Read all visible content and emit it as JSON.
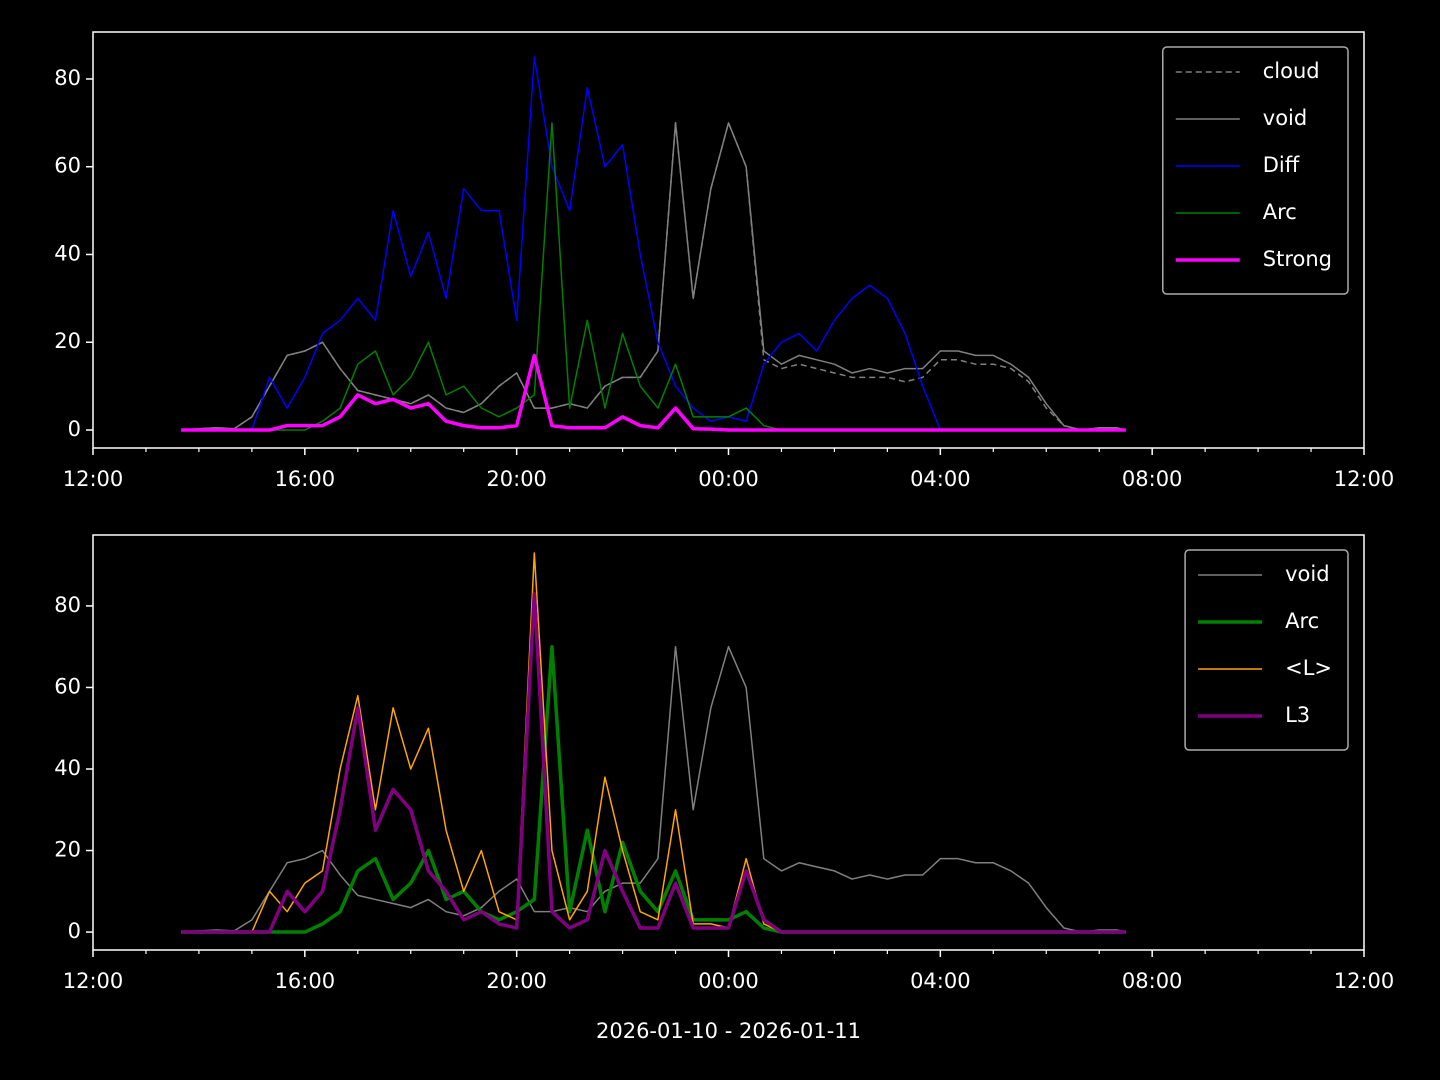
{
  "chart_data": [
    {
      "type": "line",
      "legend": "upper right",
      "ylim": [
        -4.1,
        90.7
      ],
      "yticks": [
        0,
        20,
        40,
        60,
        80
      ],
      "xlim": [
        "2026-01-10T12:00",
        "2026-01-11T12:00"
      ],
      "xticks": [
        {
          "value": "2026-01-10T12:00",
          "label": "12:00"
        },
        {
          "value": "2026-01-10T16:00",
          "label": "16:00"
        },
        {
          "value": "2026-01-10T20:00",
          "label": "20:00"
        },
        {
          "value": "2026-01-11T00:00",
          "label": "00:00"
        },
        {
          "value": "2026-01-11T04:00",
          "label": "04:00"
        },
        {
          "value": "2026-01-11T08:00",
          "label": "08:00"
        },
        {
          "value": "2026-01-11T12:00",
          "label": "12:00"
        }
      ],
      "xminorticks": [
        "2026-01-10T13:00",
        "2026-01-10T14:00",
        "2026-01-10T15:00",
        "2026-01-10T17:00",
        "2026-01-10T18:00",
        "2026-01-10T19:00",
        "2026-01-10T21:00",
        "2026-01-10T22:00",
        "2026-01-10T23:00",
        "2026-01-11T01:00",
        "2026-01-11T02:00",
        "2026-01-11T03:00",
        "2026-01-11T05:00",
        "2026-01-11T06:00",
        "2026-01-11T07:00",
        "2026-01-11T09:00",
        "2026-01-11T10:00",
        "2026-01-11T11:00"
      ],
      "x": [
        "2026-01-10T13:40",
        "2026-01-10T14:00",
        "2026-01-10T14:20",
        "2026-01-10T14:40",
        "2026-01-10T15:00",
        "2026-01-10T15:20",
        "2026-01-10T15:40",
        "2026-01-10T16:00",
        "2026-01-10T16:20",
        "2026-01-10T16:40",
        "2026-01-10T17:00",
        "2026-01-10T17:20",
        "2026-01-10T17:40",
        "2026-01-10T18:00",
        "2026-01-10T18:20",
        "2026-01-10T18:40",
        "2026-01-10T19:00",
        "2026-01-10T19:20",
        "2026-01-10T19:40",
        "2026-01-10T20:00",
        "2026-01-10T20:20",
        "2026-01-10T20:40",
        "2026-01-10T21:00",
        "2026-01-10T21:20",
        "2026-01-10T21:40",
        "2026-01-10T22:00",
        "2026-01-10T22:20",
        "2026-01-10T22:40",
        "2026-01-10T23:00",
        "2026-01-10T23:20",
        "2026-01-10T23:40",
        "2026-01-11T00:00",
        "2026-01-11T00:20",
        "2026-01-11T00:40",
        "2026-01-11T01:00",
        "2026-01-11T01:20",
        "2026-01-11T01:40",
        "2026-01-11T02:00",
        "2026-01-11T02:20",
        "2026-01-11T02:40",
        "2026-01-11T03:00",
        "2026-01-11T03:20",
        "2026-01-11T03:40",
        "2026-01-11T04:00",
        "2026-01-11T04:20",
        "2026-01-11T04:40",
        "2026-01-11T05:00",
        "2026-01-11T05:20",
        "2026-01-11T05:40",
        "2026-01-11T06:00",
        "2026-01-11T06:20",
        "2026-01-11T06:40",
        "2026-01-11T07:00",
        "2026-01-11T07:20",
        "2026-01-11T07:30"
      ],
      "series": [
        {
          "name": "cloud",
          "color": "#808080",
          "linestyle": "dashed",
          "linewidth": 1.5,
          "values": [
            0,
            0.3,
            0.5,
            0.3,
            3,
            10,
            17,
            18,
            20,
            14,
            9,
            8,
            7,
            6,
            8,
            5,
            4,
            6,
            10,
            13,
            5,
            5,
            6,
            5,
            10,
            12,
            12,
            18,
            70,
            30,
            55,
            70,
            60,
            16,
            14,
            15,
            14,
            13,
            12,
            12,
            12,
            11,
            12,
            16,
            16,
            15,
            15,
            14,
            11,
            5,
            1,
            0,
            0.5,
            0.5,
            0
          ]
        },
        {
          "name": "void",
          "color": "#808080",
          "linestyle": "solid",
          "linewidth": 1.5,
          "values": [
            0,
            0.3,
            0.5,
            0.3,
            3,
            10,
            17,
            18,
            20,
            14,
            9,
            8,
            7,
            6,
            8,
            5,
            4,
            6,
            10,
            13,
            5,
            5,
            6,
            5,
            10,
            12,
            12,
            18,
            70,
            30,
            55,
            70,
            60,
            18,
            15,
            17,
            16,
            15,
            13,
            14,
            13,
            14,
            14,
            18,
            18,
            17,
            17,
            15,
            12,
            6,
            1,
            0,
            0.5,
            0.5,
            0
          ]
        },
        {
          "name": "Diff",
          "color": "#0000ff",
          "linestyle": "solid",
          "linewidth": 1.5,
          "values": [
            0,
            0,
            0,
            0,
            0,
            12,
            5,
            12,
            22,
            25,
            30,
            25,
            50,
            35,
            45,
            30,
            55,
            50,
            50,
            25,
            85,
            60,
            50,
            78,
            60,
            65,
            40,
            20,
            10,
            5,
            2,
            3,
            2,
            15,
            20,
            22,
            18,
            25,
            30,
            33,
            30,
            22,
            10,
            0,
            0,
            0,
            0,
            0,
            0,
            0,
            0,
            0,
            0,
            0,
            0
          ]
        },
        {
          "name": "Arc",
          "color": "#008000",
          "linestyle": "solid",
          "linewidth": 1.5,
          "values": [
            0,
            0,
            0,
            0,
            0,
            0,
            0,
            0,
            2,
            5,
            15,
            18,
            8,
            12,
            20,
            8,
            10,
            5,
            3,
            5,
            8,
            70,
            5,
            25,
            5,
            22,
            10,
            5,
            15,
            3,
            3,
            3,
            5,
            1,
            0,
            0,
            0,
            0,
            0,
            0,
            0,
            0,
            0,
            0,
            0,
            0,
            0,
            0,
            0,
            0,
            0,
            0,
            0,
            0,
            0
          ]
        },
        {
          "name": "Strong",
          "color": "#ff00ff",
          "linestyle": "solid",
          "linewidth": 3.5,
          "values": [
            0,
            0,
            0,
            0,
            0,
            0,
            1,
            1,
            1,
            3,
            8,
            6,
            7,
            5,
            6,
            2,
            1,
            0.5,
            0.5,
            1,
            17,
            1,
            0.5,
            0.5,
            0.5,
            3,
            1,
            0.5,
            5,
            0.3,
            0.2,
            0,
            0,
            0,
            0,
            0,
            0,
            0,
            0,
            0,
            0,
            0,
            0,
            0,
            0,
            0,
            0,
            0,
            0,
            0,
            0,
            0,
            0,
            0,
            0
          ]
        }
      ]
    },
    {
      "type": "line",
      "legend": "upper right",
      "xlabel": "2026-01-10 - 2026-01-11",
      "ylim": [
        -4.4,
        97.4
      ],
      "yticks": [
        0,
        20,
        40,
        60,
        80
      ],
      "xlim": [
        "2026-01-10T12:00",
        "2026-01-11T12:00"
      ],
      "xticks": [
        {
          "value": "2026-01-10T12:00",
          "label": "12:00"
        },
        {
          "value": "2026-01-10T16:00",
          "label": "16:00"
        },
        {
          "value": "2026-01-10T20:00",
          "label": "20:00"
        },
        {
          "value": "2026-01-11T00:00",
          "label": "00:00"
        },
        {
          "value": "2026-01-11T04:00",
          "label": "04:00"
        },
        {
          "value": "2026-01-11T08:00",
          "label": "08:00"
        },
        {
          "value": "2026-01-11T12:00",
          "label": "12:00"
        }
      ],
      "xminorticks": [
        "2026-01-10T13:00",
        "2026-01-10T14:00",
        "2026-01-10T15:00",
        "2026-01-10T17:00",
        "2026-01-10T18:00",
        "2026-01-10T19:00",
        "2026-01-10T21:00",
        "2026-01-10T22:00",
        "2026-01-10T23:00",
        "2026-01-11T01:00",
        "2026-01-11T02:00",
        "2026-01-11T03:00",
        "2026-01-11T05:00",
        "2026-01-11T06:00",
        "2026-01-11T07:00",
        "2026-01-11T09:00",
        "2026-01-11T10:00",
        "2026-01-11T11:00"
      ],
      "x": [
        "2026-01-10T13:40",
        "2026-01-10T14:00",
        "2026-01-10T14:20",
        "2026-01-10T14:40",
        "2026-01-10T15:00",
        "2026-01-10T15:20",
        "2026-01-10T15:40",
        "2026-01-10T16:00",
        "2026-01-10T16:20",
        "2026-01-10T16:40",
        "2026-01-10T17:00",
        "2026-01-10T17:20",
        "2026-01-10T17:40",
        "2026-01-10T18:00",
        "2026-01-10T18:20",
        "2026-01-10T18:40",
        "2026-01-10T19:00",
        "2026-01-10T19:20",
        "2026-01-10T19:40",
        "2026-01-10T20:00",
        "2026-01-10T20:20",
        "2026-01-10T20:40",
        "2026-01-10T21:00",
        "2026-01-10T21:20",
        "2026-01-10T21:40",
        "2026-01-10T22:00",
        "2026-01-10T22:20",
        "2026-01-10T22:40",
        "2026-01-10T23:00",
        "2026-01-10T23:20",
        "2026-01-10T23:40",
        "2026-01-11T00:00",
        "2026-01-11T00:20",
        "2026-01-11T00:40",
        "2026-01-11T01:00",
        "2026-01-11T01:20",
        "2026-01-11T01:40",
        "2026-01-11T02:00",
        "2026-01-11T02:20",
        "2026-01-11T02:40",
        "2026-01-11T03:00",
        "2026-01-11T03:20",
        "2026-01-11T03:40",
        "2026-01-11T04:00",
        "2026-01-11T04:20",
        "2026-01-11T04:40",
        "2026-01-11T05:00",
        "2026-01-11T05:20",
        "2026-01-11T05:40",
        "2026-01-11T06:00",
        "2026-01-11T06:20",
        "2026-01-11T06:40",
        "2026-01-11T07:00",
        "2026-01-11T07:20",
        "2026-01-11T07:30"
      ],
      "series": [
        {
          "name": "void",
          "color": "#808080",
          "linestyle": "solid",
          "linewidth": 1.5,
          "values": [
            0,
            0.3,
            0.5,
            0.3,
            3,
            10,
            17,
            18,
            20,
            14,
            9,
            8,
            7,
            6,
            8,
            5,
            4,
            6,
            10,
            13,
            5,
            5,
            6,
            5,
            10,
            12,
            12,
            18,
            70,
            30,
            55,
            70,
            60,
            18,
            15,
            17,
            16,
            15,
            13,
            14,
            13,
            14,
            14,
            18,
            18,
            17,
            17,
            15,
            12,
            6,
            1,
            0,
            0.5,
            0.5,
            0
          ]
        },
        {
          "name": "Arc",
          "color": "#008000",
          "linestyle": "solid",
          "linewidth": 3.5,
          "values": [
            0,
            0,
            0,
            0,
            0,
            0,
            0,
            0,
            2,
            5,
            15,
            18,
            8,
            12,
            20,
            8,
            10,
            5,
            3,
            5,
            8,
            70,
            5,
            25,
            5,
            22,
            10,
            5,
            15,
            3,
            3,
            3,
            5,
            1,
            0,
            0,
            0,
            0,
            0,
            0,
            0,
            0,
            0,
            0,
            0,
            0,
            0,
            0,
            0,
            0,
            0,
            0,
            0,
            0,
            0
          ]
        },
        {
          "name": "<L>",
          "color": "#ffa500",
          "linestyle": "solid",
          "linewidth": 1.5,
          "values": [
            0,
            0,
            0,
            0,
            0,
            10,
            5,
            12,
            15,
            40,
            58,
            30,
            55,
            40,
            50,
            25,
            10,
            20,
            5,
            3,
            93,
            20,
            3,
            10,
            38,
            20,
            5,
            3,
            30,
            2,
            2,
            1,
            18,
            2,
            0,
            0,
            0,
            0,
            0,
            0,
            0,
            0,
            0,
            0,
            0,
            0,
            0,
            0,
            0,
            0,
            0,
            0,
            0,
            0,
            0
          ]
        },
        {
          "name": "L3",
          "color": "#800080",
          "linestyle": "solid",
          "linewidth": 3.5,
          "values": [
            0,
            0,
            0,
            0,
            0,
            0,
            10,
            5,
            10,
            30,
            55,
            25,
            35,
            30,
            15,
            10,
            3,
            5,
            2,
            1,
            83,
            5,
            1,
            3,
            20,
            10,
            1,
            1,
            12,
            1,
            1,
            1,
            15,
            3,
            0,
            0,
            0,
            0,
            0,
            0,
            0,
            0,
            0,
            0,
            0,
            0,
            0,
            0,
            0,
            0,
            0,
            0,
            0,
            0,
            0
          ]
        }
      ]
    }
  ]
}
